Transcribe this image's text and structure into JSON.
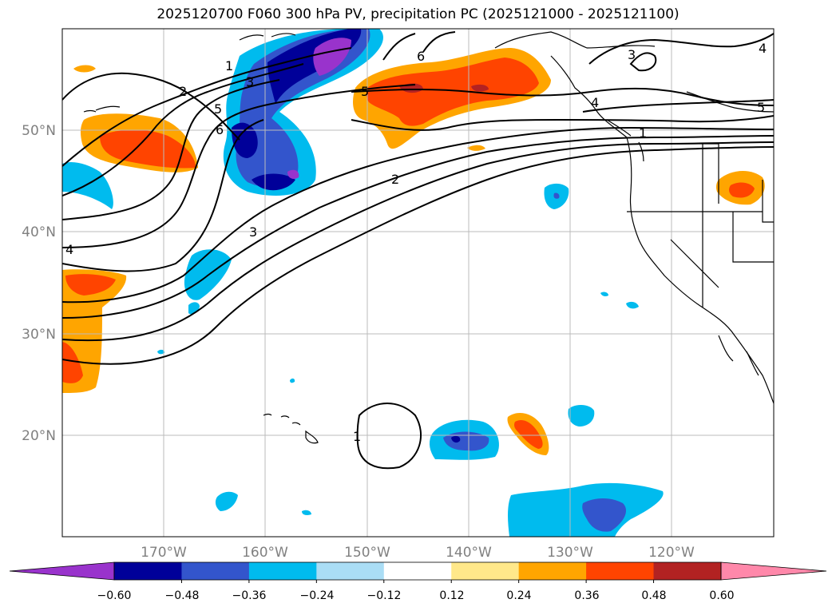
{
  "title": "2025120700 F060 300 hPa PV, precipitation PC (2025121000 - 2025121100)",
  "lat_labels": [
    "50°N",
    "40°N",
    "30°N",
    "20°N"
  ],
  "lon_labels": [
    "170°W",
    "160°W",
    "150°W",
    "140°W",
    "130°W",
    "120°W"
  ],
  "pv_contour_labels": [
    "1",
    "2",
    "3",
    "4",
    "5",
    "6",
    "6",
    "5",
    "4",
    "3",
    "2",
    "1",
    "4",
    "3",
    "5",
    "1"
  ],
  "colorbar": {
    "tick_labels": [
      "−0.60",
      "−0.48",
      "−0.36",
      "−0.24",
      "−0.12",
      "0.12",
      "0.24",
      "0.36",
      "0.48",
      "0.60"
    ],
    "colors": [
      "#9933cc",
      "#000099",
      "#3355cc",
      "#00bbee",
      "#aaddf5",
      "#ffffff",
      "#ffe88a",
      "#ffa500",
      "#ff4400",
      "#b22222",
      "#ff88aa"
    ]
  }
}
